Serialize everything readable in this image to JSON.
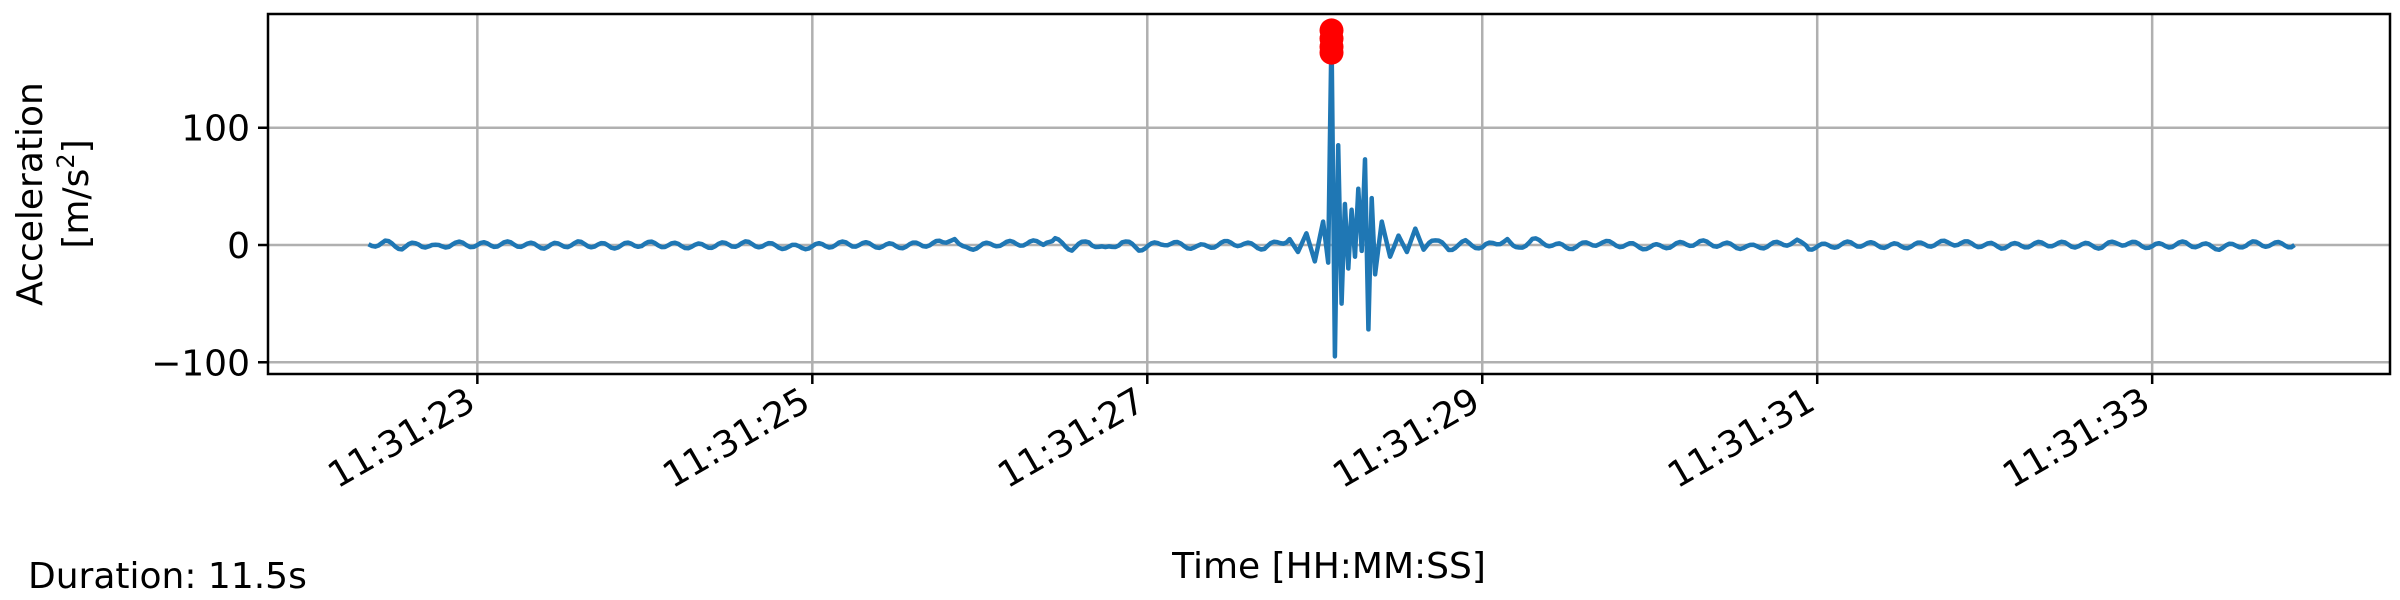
{
  "chart_data": {
    "type": "line",
    "title": "",
    "xlabel": "Time [HH:MM:SS]",
    "ylabel_lines": [
      "Acceleration",
      "[m/s",
      "2",
      "]"
    ],
    "x_ticks": [
      "11:31:23",
      "11:31:25",
      "11:31:27",
      "11:31:29",
      "11:31:31",
      "11:31:33"
    ],
    "x_tick_seconds": [
      23,
      25,
      27,
      29,
      31,
      33
    ],
    "xlim": [
      21.75,
      34.42
    ],
    "y_ticks": [
      "100",
      "0",
      "−100"
    ],
    "y_tick_values": [
      100,
      0,
      -100
    ],
    "ylim": [
      -110,
      197
    ],
    "grid": true,
    "line_color": "#1f77b4",
    "peak_color": "#ff0000",
    "signal_start": 22.35,
    "signal_end": 33.85,
    "series": [
      {
        "values": [
          [
            22.35,
            0
          ],
          [
            22.45,
            2
          ],
          [
            22.55,
            -2
          ],
          [
            22.65,
            1
          ],
          [
            22.75,
            -2
          ],
          [
            22.85,
            1
          ],
          [
            23.0,
            0
          ],
          [
            23.2,
            1
          ],
          [
            23.4,
            -1
          ],
          [
            23.6,
            1
          ],
          [
            23.8,
            -1
          ],
          [
            24.0,
            1
          ],
          [
            24.3,
            -1
          ],
          [
            24.6,
            1
          ],
          [
            24.9,
            -2
          ],
          [
            25.2,
            1
          ],
          [
            25.5,
            -1
          ],
          [
            25.8,
            2
          ],
          [
            25.85,
            5
          ],
          [
            25.9,
            -3
          ],
          [
            26.1,
            1
          ],
          [
            26.4,
            2
          ],
          [
            26.45,
            4
          ],
          [
            26.55,
            -3
          ],
          [
            26.65,
            3
          ],
          [
            26.75,
            -4
          ],
          [
            26.85,
            3
          ],
          [
            26.95,
            -3
          ],
          [
            27.1,
            2
          ],
          [
            27.3,
            -2
          ],
          [
            27.5,
            2
          ],
          [
            27.7,
            -2
          ],
          [
            27.85,
            5
          ],
          [
            27.9,
            -6
          ],
          [
            27.95,
            10
          ],
          [
            28.0,
            -14
          ],
          [
            28.05,
            20
          ],
          [
            28.08,
            -15
          ],
          [
            28.1,
            180
          ],
          [
            28.12,
            -95
          ],
          [
            28.14,
            85
          ],
          [
            28.16,
            -50
          ],
          [
            28.18,
            35
          ],
          [
            28.2,
            -20
          ],
          [
            28.22,
            30
          ],
          [
            28.24,
            -10
          ],
          [
            28.26,
            48
          ],
          [
            28.28,
            -5
          ],
          [
            28.3,
            73
          ],
          [
            28.32,
            -72
          ],
          [
            28.34,
            40
          ],
          [
            28.36,
            -25
          ],
          [
            28.4,
            20
          ],
          [
            28.45,
            -10
          ],
          [
            28.5,
            8
          ],
          [
            28.55,
            -6
          ],
          [
            28.6,
            14
          ],
          [
            28.65,
            -4
          ],
          [
            28.7,
            5
          ],
          [
            28.8,
            -3
          ],
          [
            28.9,
            2
          ],
          [
            29.0,
            -2
          ],
          [
            29.15,
            5
          ],
          [
            29.2,
            -3
          ],
          [
            29.3,
            4
          ],
          [
            29.5,
            -2
          ],
          [
            29.7,
            2
          ],
          [
            30.0,
            -2
          ],
          [
            30.3,
            2
          ],
          [
            30.6,
            -2
          ],
          [
            30.9,
            3
          ],
          [
            30.95,
            -2
          ],
          [
            31.2,
            1
          ],
          [
            31.5,
            -1
          ],
          [
            31.8,
            2
          ],
          [
            32.1,
            -1
          ],
          [
            32.4,
            1
          ],
          [
            32.7,
            -1
          ],
          [
            32.8,
            2
          ],
          [
            33.0,
            -1
          ],
          [
            33.2,
            1
          ],
          [
            33.4,
            -2
          ],
          [
            33.6,
            1
          ],
          [
            33.85,
            0
          ]
        ]
      }
    ],
    "peaks": [
      [
        28.1,
        183
      ],
      [
        28.1,
        176
      ],
      [
        28.1,
        169
      ],
      [
        28.1,
        164
      ]
    ]
  },
  "footer": {
    "duration": "Duration: 11.5s"
  }
}
